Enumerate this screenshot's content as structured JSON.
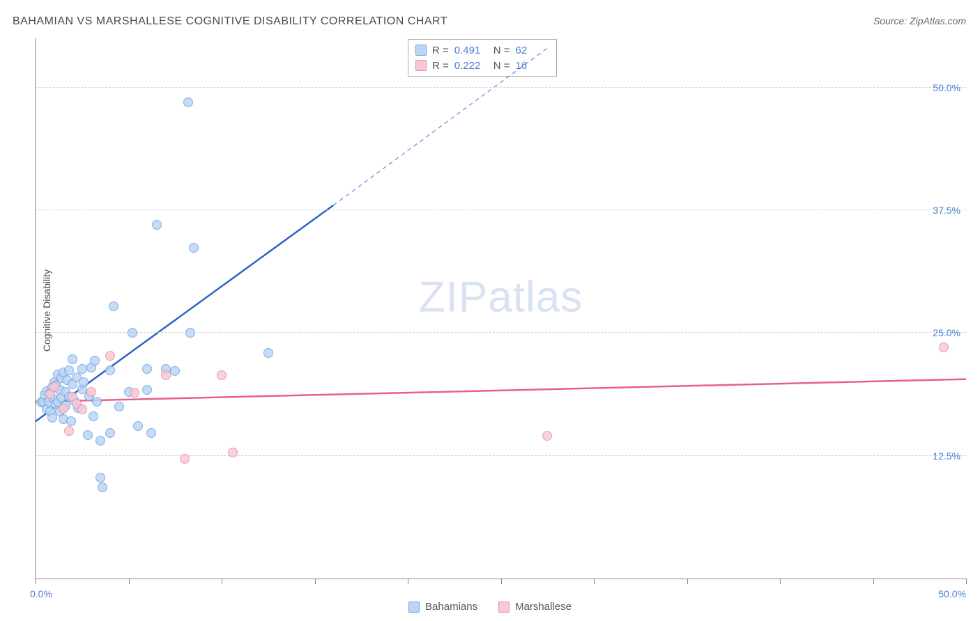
{
  "title": "BAHAMIAN VS MARSHALLESE COGNITIVE DISABILITY CORRELATION CHART",
  "source": "Source: ZipAtlas.com",
  "ylabel": "Cognitive Disability",
  "watermark_bold": "ZIP",
  "watermark_thin": "atlas",
  "chart": {
    "type": "scatter",
    "xlim": [
      0,
      50
    ],
    "ylim": [
      0,
      55
    ],
    "x_ticks": [
      0,
      5,
      10,
      15,
      20,
      25,
      30,
      35,
      40,
      45,
      50
    ],
    "y_gridlines": [
      12.5,
      25.0,
      37.5,
      50.0
    ],
    "y_tick_labels": [
      "12.5%",
      "25.0%",
      "37.5%",
      "50.0%"
    ],
    "x_min_label": "0.0%",
    "x_max_label": "50.0%",
    "background_color": "#ffffff",
    "grid_color": "#d0d0d0",
    "axis_color": "#888888",
    "tick_label_color": "#4a80d0",
    "marker_radius": 7,
    "series": [
      {
        "name": "Bahamians",
        "fill": "#bcd5f5",
        "stroke": "#6ea2e0",
        "line_color": "#2b63c7",
        "r": 0.491,
        "n": 62,
        "trend": {
          "x1": 0,
          "y1": 16.0,
          "x2": 16.0,
          "y2": 38.0,
          "extend_x2": 27.5,
          "extend_y2": 54.0,
          "dash_extend": true
        },
        "points": [
          [
            0.3,
            17.9
          ],
          [
            0.4,
            18.0
          ],
          [
            0.5,
            18.7
          ],
          [
            0.6,
            17.2
          ],
          [
            0.6,
            19.1
          ],
          [
            0.7,
            18.0
          ],
          [
            0.8,
            18.9
          ],
          [
            0.8,
            17.0
          ],
          [
            0.9,
            16.4
          ],
          [
            0.9,
            19.5
          ],
          [
            1.0,
            18.2
          ],
          [
            1.0,
            20.0
          ],
          [
            1.1,
            17.8
          ],
          [
            1.1,
            19.7
          ],
          [
            1.2,
            18.0
          ],
          [
            1.2,
            20.8
          ],
          [
            1.3,
            17.0
          ],
          [
            1.3,
            19.2
          ],
          [
            1.4,
            18.4
          ],
          [
            1.4,
            20.4
          ],
          [
            1.5,
            16.2
          ],
          [
            1.5,
            21.0
          ],
          [
            1.6,
            17.6
          ],
          [
            1.6,
            19.0
          ],
          [
            1.7,
            20.2
          ],
          [
            1.8,
            18.5
          ],
          [
            1.8,
            21.2
          ],
          [
            1.9,
            16.0
          ],
          [
            2.0,
            19.8
          ],
          [
            2.0,
            22.3
          ],
          [
            2.1,
            18.1
          ],
          [
            2.2,
            20.5
          ],
          [
            2.3,
            17.4
          ],
          [
            2.5,
            21.3
          ],
          [
            2.5,
            19.3
          ],
          [
            2.6,
            20.0
          ],
          [
            2.8,
            14.6
          ],
          [
            2.9,
            18.6
          ],
          [
            3.0,
            21.5
          ],
          [
            3.1,
            16.5
          ],
          [
            3.2,
            22.2
          ],
          [
            3.3,
            18.0
          ],
          [
            3.5,
            14.0
          ],
          [
            3.5,
            10.3
          ],
          [
            3.6,
            9.3
          ],
          [
            4.0,
            21.2
          ],
          [
            4.0,
            14.8
          ],
          [
            4.2,
            27.7
          ],
          [
            4.5,
            17.5
          ],
          [
            5.0,
            19.0
          ],
          [
            5.2,
            25.0
          ],
          [
            5.5,
            15.5
          ],
          [
            6.0,
            19.2
          ],
          [
            6.0,
            21.3
          ],
          [
            6.2,
            14.8
          ],
          [
            6.5,
            36.0
          ],
          [
            7.0,
            21.3
          ],
          [
            7.5,
            21.1
          ],
          [
            8.2,
            48.5
          ],
          [
            8.3,
            25.0
          ],
          [
            8.5,
            33.7
          ],
          [
            12.5,
            23.0
          ]
        ]
      },
      {
        "name": "Marshallese",
        "fill": "#f7c9d5",
        "stroke": "#e88ba6",
        "line_color": "#e85f8a",
        "r": 0.222,
        "n": 16,
        "trend": {
          "x1": 0,
          "y1": 18.0,
          "x2": 50,
          "y2": 20.3,
          "dash_extend": false
        },
        "points": [
          [
            0.8,
            18.8
          ],
          [
            1.0,
            19.5
          ],
          [
            1.5,
            17.3
          ],
          [
            1.8,
            15.0
          ],
          [
            2.0,
            18.5
          ],
          [
            2.2,
            17.8
          ],
          [
            2.5,
            17.2
          ],
          [
            3.0,
            19.0
          ],
          [
            4.0,
            22.7
          ],
          [
            5.3,
            18.9
          ],
          [
            7.0,
            20.7
          ],
          [
            8.0,
            12.2
          ],
          [
            10.0,
            20.7
          ],
          [
            10.6,
            12.8
          ],
          [
            27.5,
            14.5
          ],
          [
            48.8,
            23.5
          ]
        ]
      }
    ]
  },
  "legend_stats": {
    "r_label": "R =",
    "n_label": "N ="
  },
  "bottom_legend": {
    "items": [
      "Bahamians",
      "Marshallese"
    ]
  }
}
